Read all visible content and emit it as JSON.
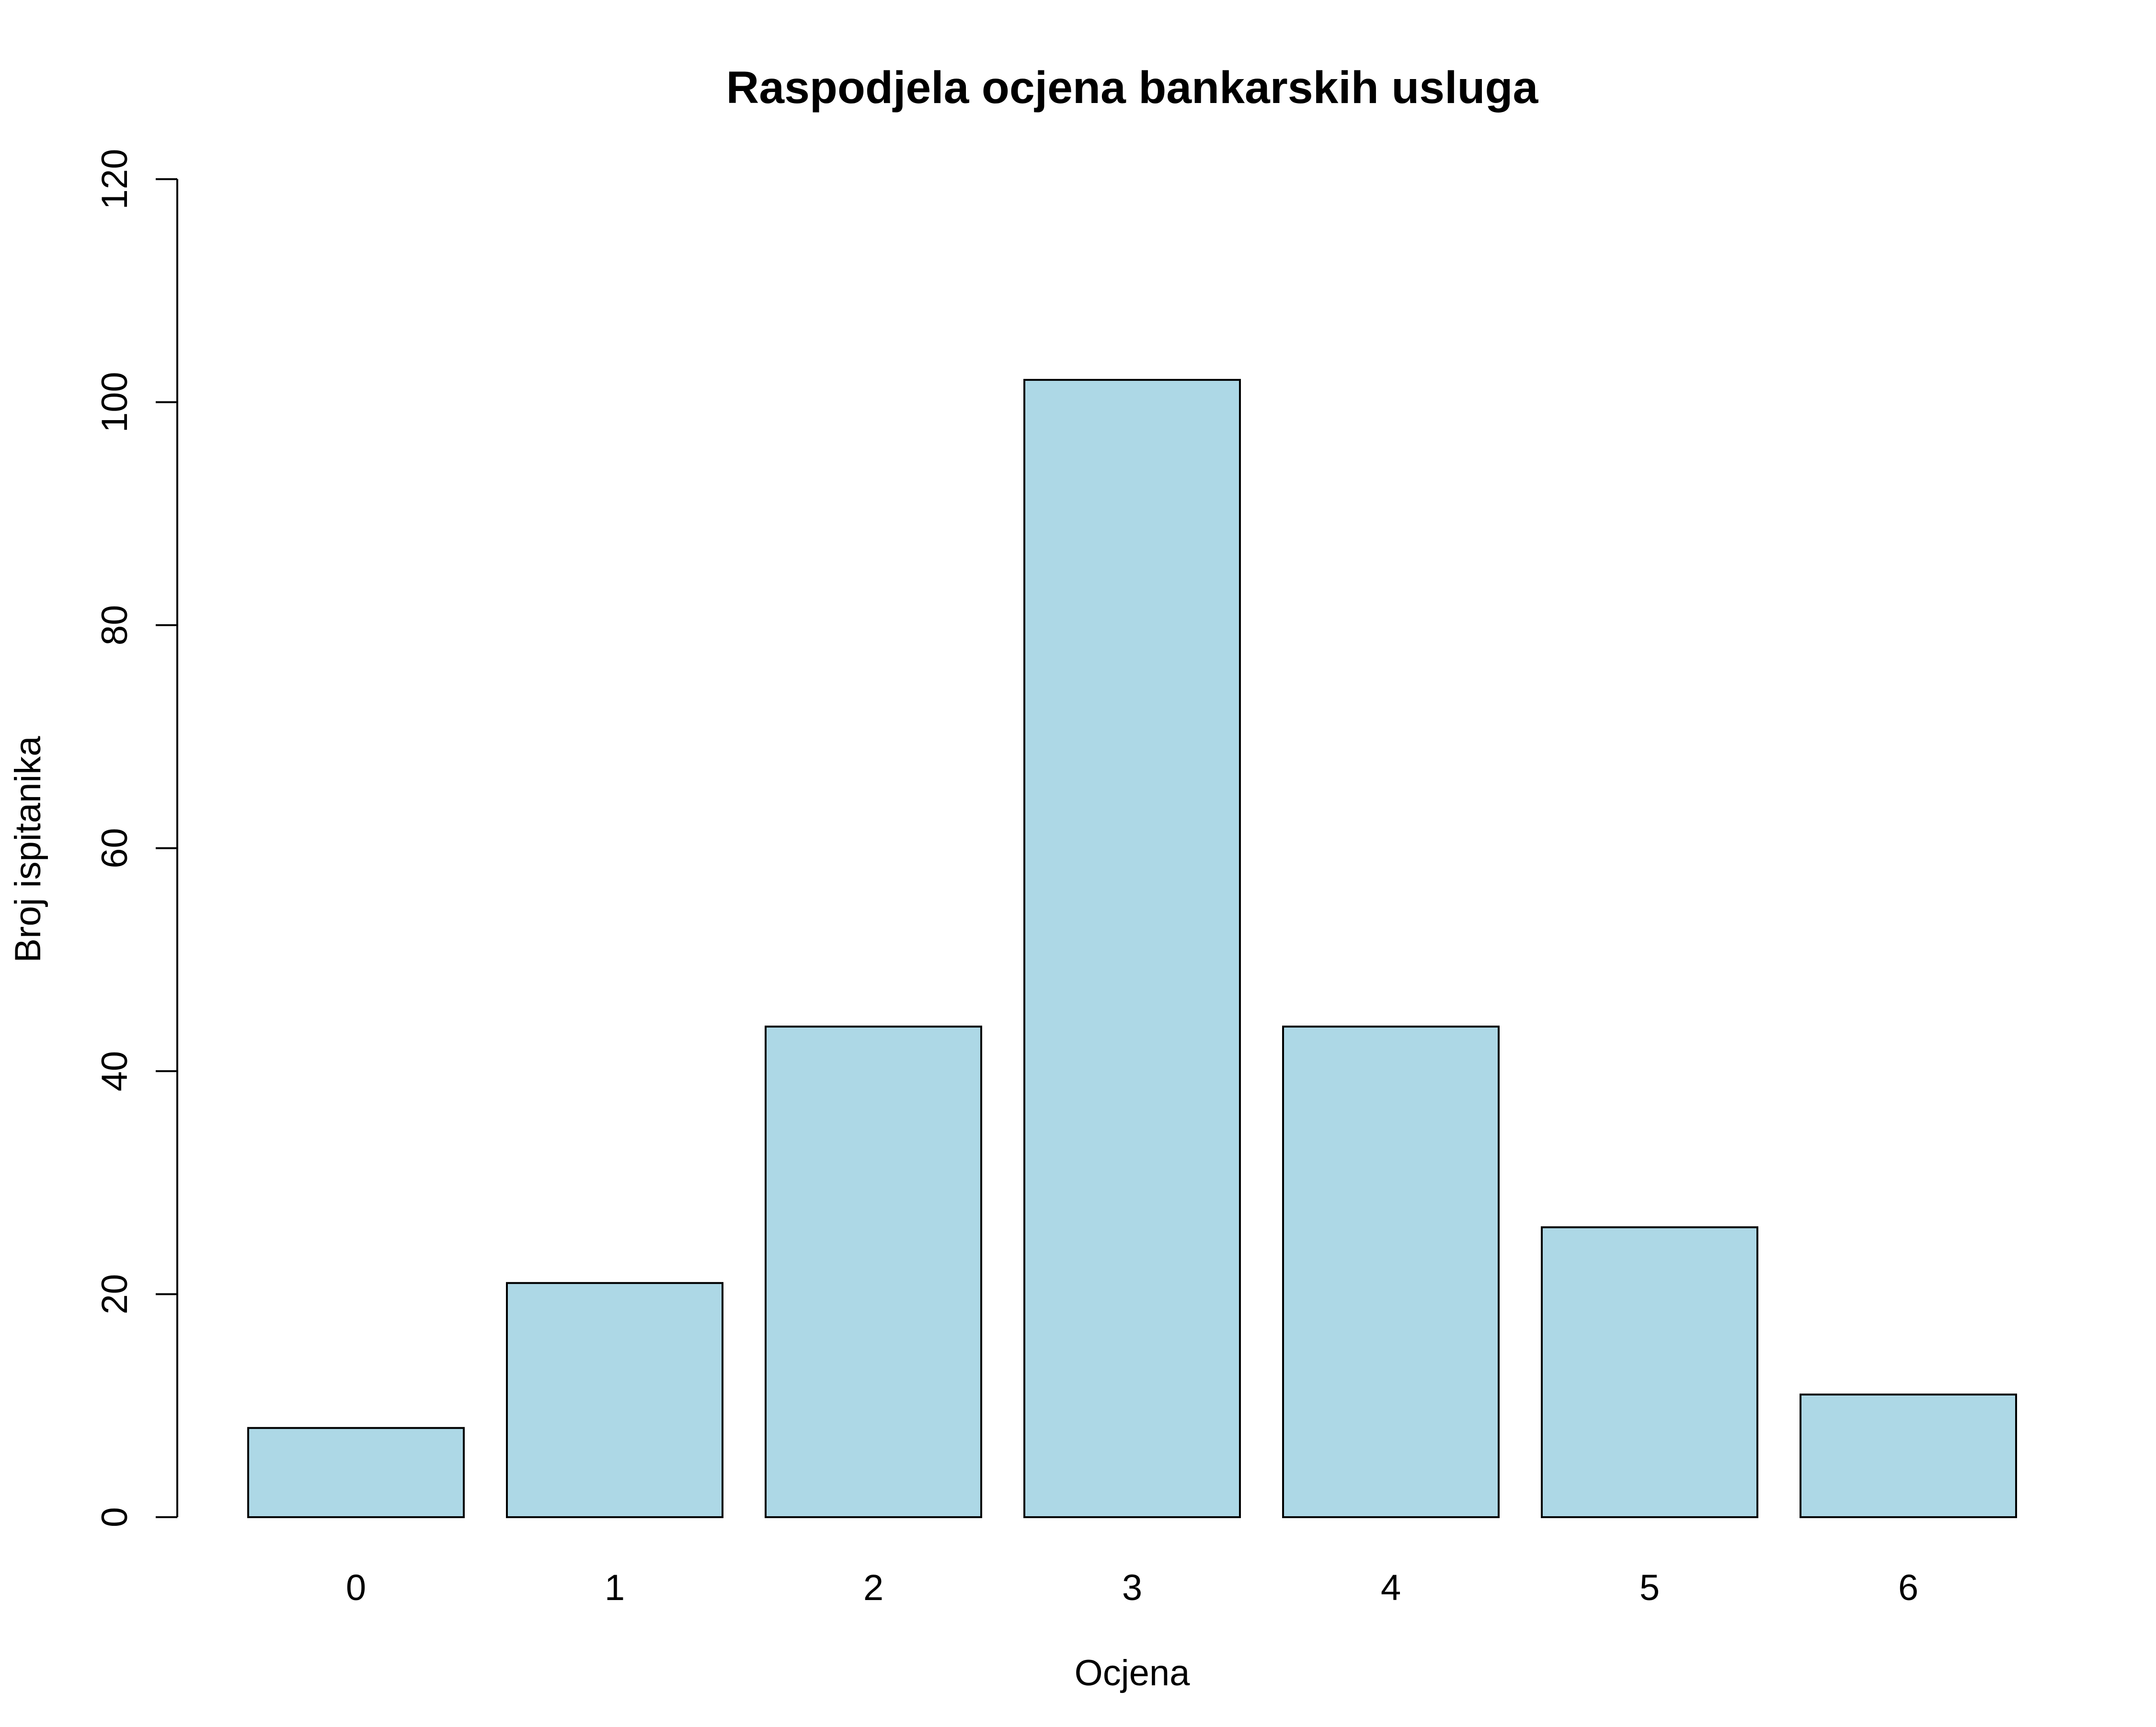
{
  "chart_data": {
    "type": "bar",
    "title": "Raspodjela ocjena bankarskih usluga",
    "xlabel": "Ocjena",
    "ylabel": "Broj ispitanika",
    "categories": [
      "0",
      "1",
      "2",
      "3",
      "4",
      "5",
      "6"
    ],
    "values": [
      8,
      21,
      44,
      102,
      44,
      26,
      11
    ],
    "ylim": [
      0,
      120
    ],
    "yticks": [
      "0",
      "20",
      "40",
      "60",
      "80",
      "100",
      "120"
    ],
    "grid": false,
    "legend": "none",
    "colors": {
      "bar_fill": "#add8e6",
      "bar_stroke": "#000000",
      "axis": "#000000",
      "background": "#ffffff"
    }
  }
}
